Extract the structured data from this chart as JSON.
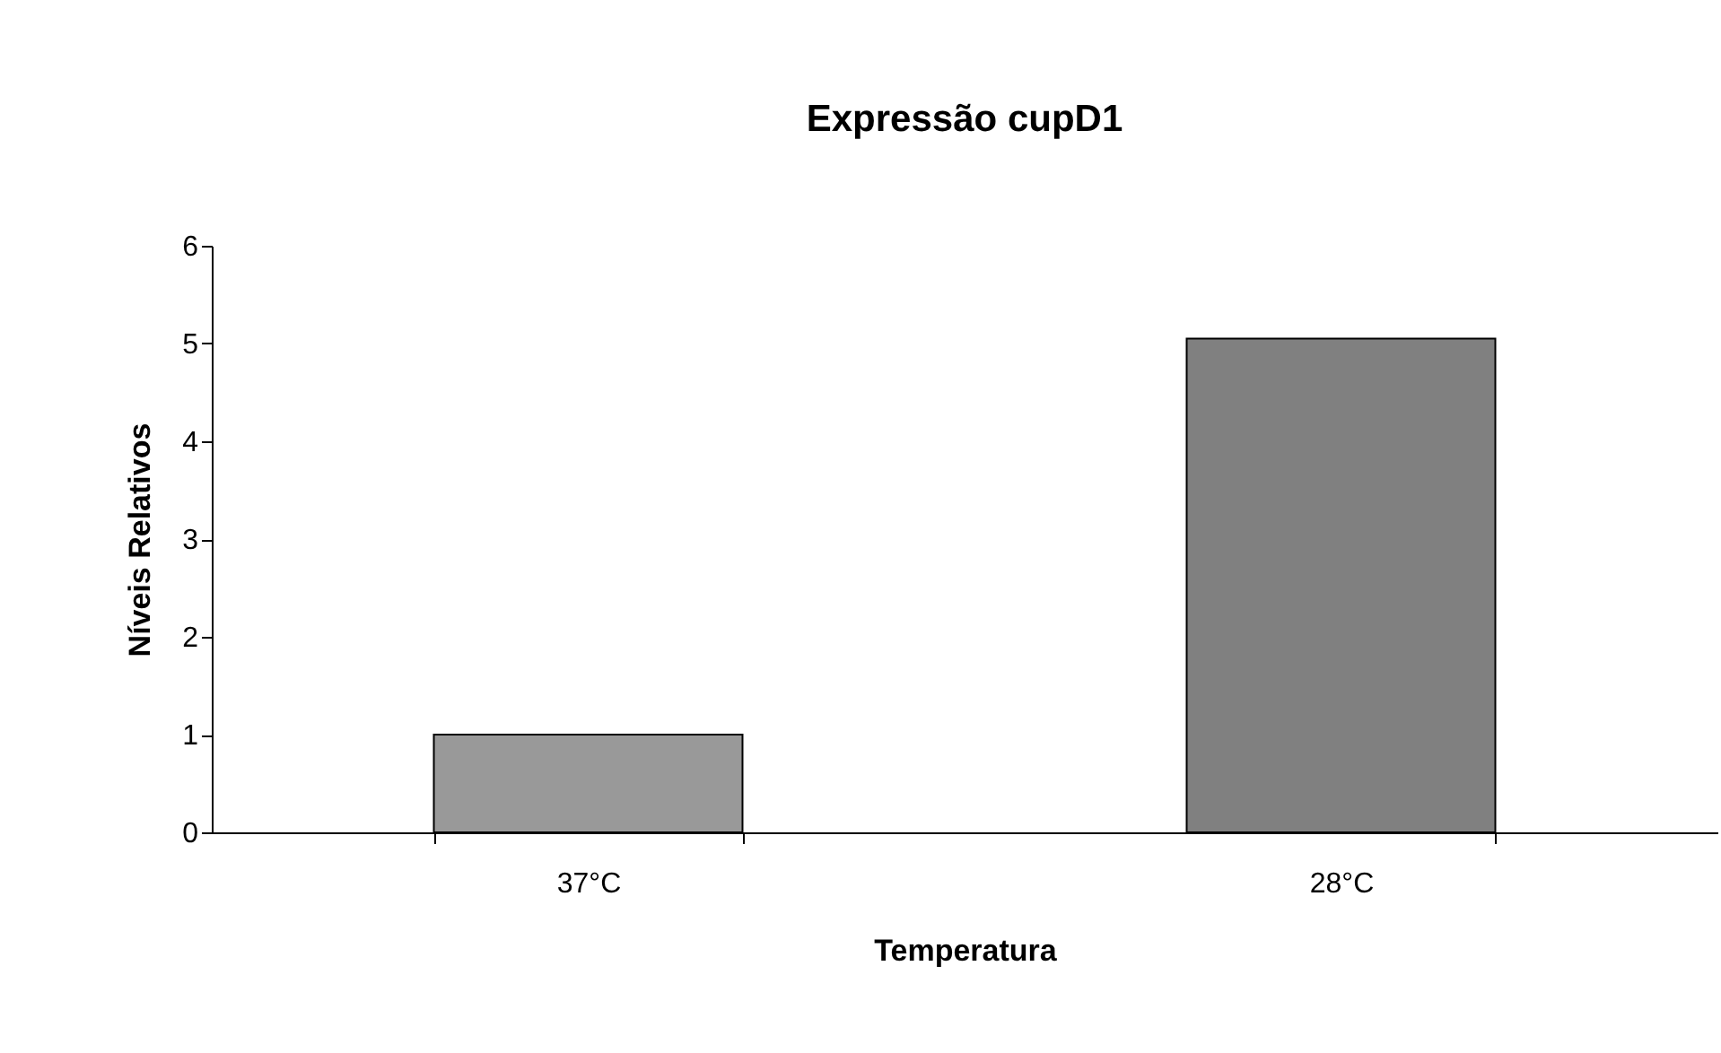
{
  "chart_data": {
    "type": "bar",
    "title": "Expressão cupD1",
    "xlabel": "Temperatura",
    "ylabel": "Níveis Relativos",
    "categories": [
      "37°C",
      "28°C"
    ],
    "values": [
      1.0,
      5.05
    ],
    "colors": [
      "#999999",
      "#808080"
    ],
    "ylim": [
      0,
      6
    ],
    "yticks": [
      0,
      1,
      2,
      3,
      4,
      5,
      6
    ]
  }
}
